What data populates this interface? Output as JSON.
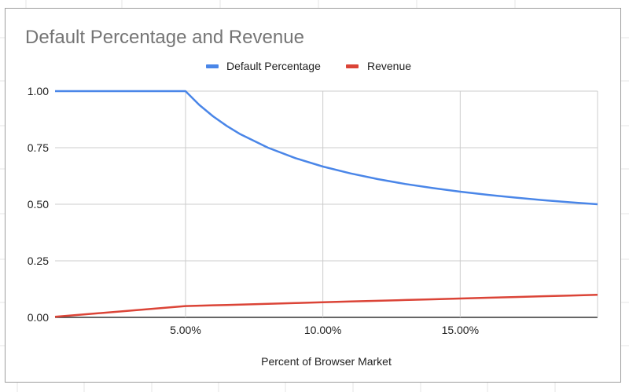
{
  "chart_data": {
    "type": "line",
    "title": "Default Percentage and Revenue",
    "xlabel": "Percent of Browser Market",
    "ylabel": "",
    "xlim": [
      0.25,
      20
    ],
    "ylim": [
      0,
      1
    ],
    "x_ticks": [
      5,
      10,
      15
    ],
    "x_tick_labels": [
      "5.00%",
      "10.00%",
      "15.00%"
    ],
    "y_ticks": [
      0,
      0.25,
      0.5,
      0.75,
      1
    ],
    "y_tick_labels": [
      "0.00",
      "0.25",
      "0.50",
      "0.75",
      "1.00"
    ],
    "grid": true,
    "legend_position": "top",
    "x": [
      0.25,
      5,
      5.5,
      6,
      6.5,
      7,
      8,
      9,
      10,
      11,
      12,
      13,
      14,
      15,
      16,
      17,
      18,
      19,
      20
    ],
    "series": [
      {
        "name": "Default Percentage",
        "color": "#4a86e8",
        "values": [
          1,
          1,
          0.9394,
          0.8889,
          0.8462,
          0.8095,
          0.75,
          0.7037,
          0.6667,
          0.6364,
          0.6111,
          0.5897,
          0.5714,
          0.5556,
          0.5417,
          0.5294,
          0.5185,
          0.5088,
          0.5
        ]
      },
      {
        "name": "Revenue",
        "color": "#db4437",
        "values": [
          0.0025,
          0.05,
          0.0517,
          0.0533,
          0.055,
          0.0567,
          0.06,
          0.0633,
          0.0667,
          0.07,
          0.0733,
          0.0767,
          0.08,
          0.0833,
          0.0867,
          0.09,
          0.0933,
          0.0967,
          0.1
        ]
      }
    ]
  }
}
